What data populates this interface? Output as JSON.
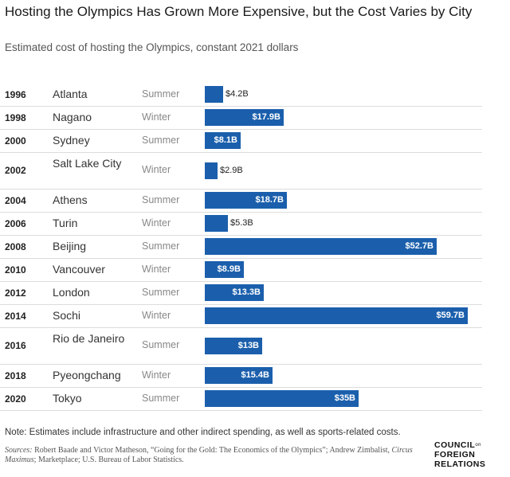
{
  "header": {
    "title": "Hosting the Olympics Has Grown More Expensive, but the Cost Varies by City",
    "subtitle": "Estimated cost of hosting the Olympics, constant 2021 dollars"
  },
  "chart_data": {
    "type": "bar",
    "orientation": "horizontal",
    "title": "Hosting the Olympics Has Grown More Expensive, but the Cost Varies by City",
    "subtitle": "Estimated cost of hosting the Olympics, constant 2021 dollars",
    "unit": "billion USD (constant 2021 dollars)",
    "bar_color": "#1b5fac",
    "rows": [
      {
        "year": "1996",
        "city": "Atlanta",
        "season": "Summer",
        "value": 4.2,
        "label": "$4.2B"
      },
      {
        "year": "1998",
        "city": "Nagano",
        "season": "Winter",
        "value": 17.9,
        "label": "$17.9B"
      },
      {
        "year": "2000",
        "city": "Sydney",
        "season": "Summer",
        "value": 8.1,
        "label": "$8.1B"
      },
      {
        "year": "2002",
        "city": "Salt Lake City",
        "season": "Winter",
        "value": 2.9,
        "label": "$2.9B"
      },
      {
        "year": "2004",
        "city": "Athens",
        "season": "Summer",
        "value": 18.7,
        "label": "$18.7B"
      },
      {
        "year": "2006",
        "city": "Turin",
        "season": "Winter",
        "value": 5.3,
        "label": "$5.3B"
      },
      {
        "year": "2008",
        "city": "Beijing",
        "season": "Summer",
        "value": 52.7,
        "label": "$52.7B"
      },
      {
        "year": "2010",
        "city": "Vancouver",
        "season": "Winter",
        "value": 8.9,
        "label": "$8.9B"
      },
      {
        "year": "2012",
        "city": "London",
        "season": "Summer",
        "value": 13.3,
        "label": "$13.3B"
      },
      {
        "year": "2014",
        "city": "Sochi",
        "season": "Winter",
        "value": 59.7,
        "label": "$59.7B"
      },
      {
        "year": "2016",
        "city": "Rio de Janeiro",
        "season": "Summer",
        "value": 13,
        "label": "$13B"
      },
      {
        "year": "2018",
        "city": "Pyeongchang",
        "season": "Winter",
        "value": 15.4,
        "label": "$15.4B"
      },
      {
        "year": "2020",
        "city": "Tokyo",
        "season": "Summer",
        "value": 35,
        "label": "$35B"
      }
    ],
    "xlim": [
      0,
      59.7
    ]
  },
  "footer": {
    "note": "Note: Estimates include infrastructure and other indirect spending, as well as sports-related costs.",
    "sources_label": "Sources:",
    "sources_text": " Robert Baade and Victor Matheson, “Going for the Gold: The Economics of the Olympics”; Andrew Zimbalist, ",
    "sources_book": "Circus Maximus",
    "sources_tail": "; Marketplace; U.S. Bureau of Labor Statistics.",
    "logo_line1": "COUNCIL",
    "logo_sup": "on",
    "logo_line2": "FOREIGN",
    "logo_line3": "RELATIONS"
  }
}
